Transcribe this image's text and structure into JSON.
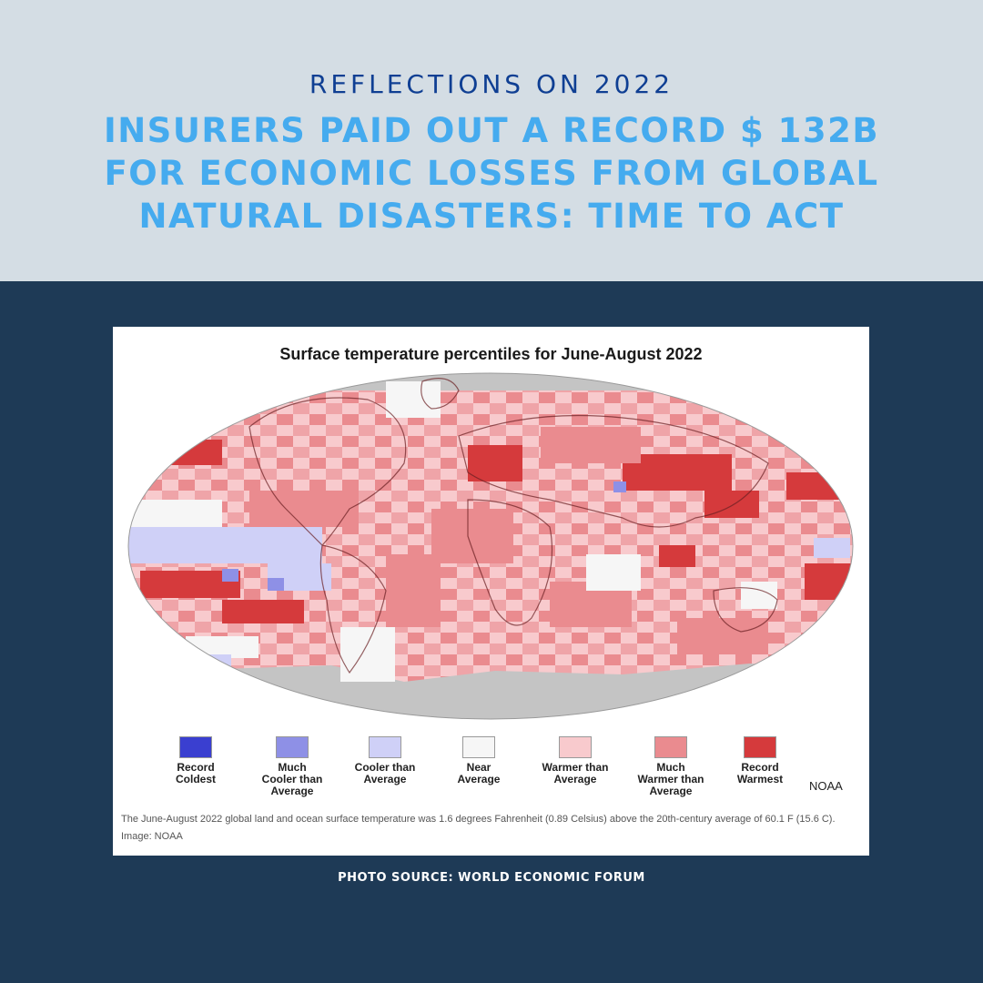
{
  "header": {
    "kicker": "REFLECTIONS ON 2022",
    "headline_lines": [
      "INSURERS PAID OUT A RECORD $ 132B",
      "FOR ECONOMIC LOSSES FROM GLOBAL",
      "NATURAL DISASTERS: TIME TO ACT"
    ]
  },
  "map": {
    "title": "Surface temperature percentiles for June-August 2022",
    "legend": [
      {
        "lines": [
          "Record",
          "Coldest"
        ],
        "color": "#3a3fd0"
      },
      {
        "lines": [
          "Much",
          "Cooler than",
          "Average"
        ],
        "color": "#8e90e6"
      },
      {
        "lines": [
          "Cooler than",
          "Average"
        ],
        "color": "#cfd0f7"
      },
      {
        "lines": [
          "Near",
          "Average"
        ],
        "color": "#f6f6f6"
      },
      {
        "lines": [
          "Warmer than",
          "Average"
        ],
        "color": "#f8cacd"
      },
      {
        "lines": [
          "Much",
          "Warmer than",
          "Average"
        ],
        "color": "#ea8b8f"
      },
      {
        "lines": [
          "Record",
          "Warmest"
        ],
        "color": "#d53a3c"
      }
    ],
    "credit": "NOAA",
    "caption": "The June-August 2022 global land and ocean surface temperature was 1.6 degrees Fahrenheit (0.89 Celsius) above the 20th-century average of 60.1 F (15.6 C). Image: NOAA"
  },
  "footer": {
    "source": "PHOTO SOURCE: WORLD ECONOMIC FORUM"
  },
  "colors": {
    "top_band": "#d4dde4",
    "background": "#1e3a56",
    "kicker": "#0f3f93",
    "headline": "#45abef",
    "polar_gray": "#c4c4c4"
  }
}
